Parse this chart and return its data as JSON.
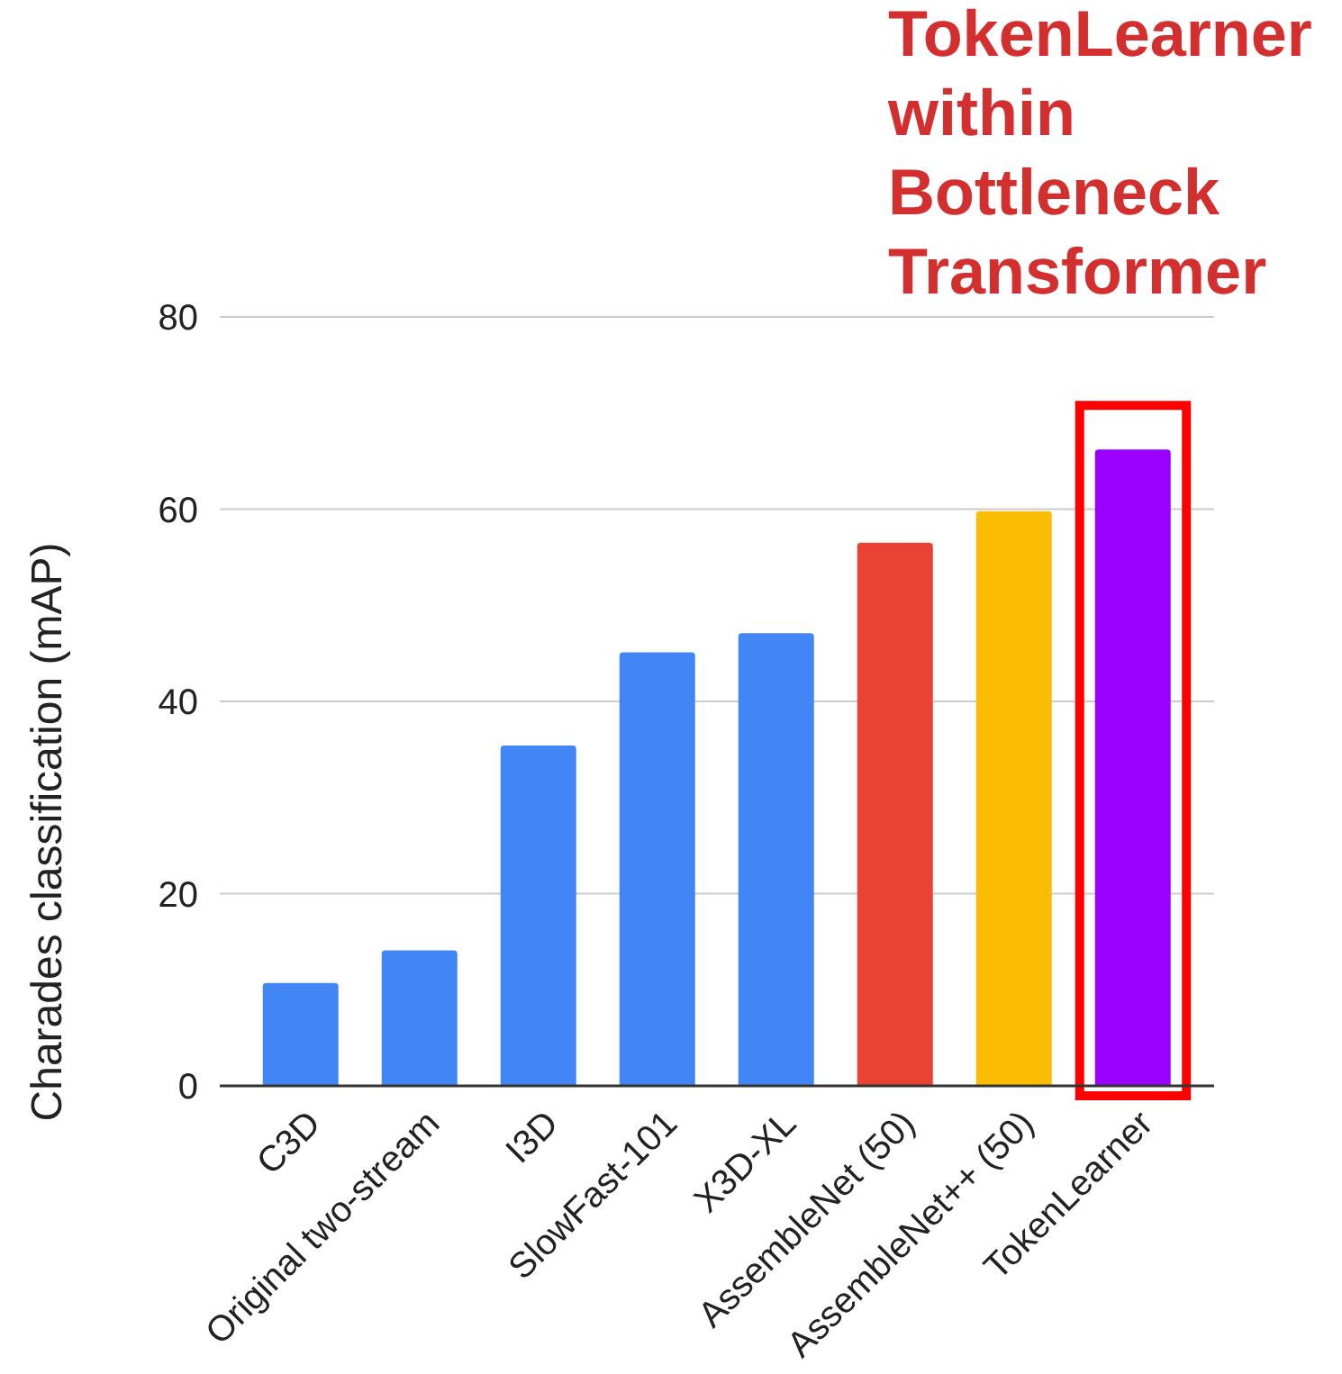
{
  "chart_data": {
    "type": "bar",
    "ylabel": "Charades classification (mAP)",
    "categories": [
      "C3D",
      "Original two-stream",
      "I3D",
      "SlowFast-101",
      "X3D-XL",
      "AssembleNet (50)",
      "AssembleNet++ (50)",
      "TokenLearner"
    ],
    "values": [
      10.7,
      14.1,
      35.4,
      45.1,
      47.1,
      56.5,
      59.8,
      66.2
    ],
    "colors": [
      "#4285f4",
      "#4285f4",
      "#4285f4",
      "#4285f4",
      "#4285f4",
      "#ea4335",
      "#fbbc04",
      "#9900ff"
    ],
    "ylim": [
      0,
      80
    ],
    "yticks": [
      0,
      20,
      40,
      60,
      80
    ],
    "grid": "y",
    "bands": [
      {
        "axis": "x",
        "from": "TokenLearner",
        "to": "TokenLearner",
        "label": "TokenLearner within Bottleneck Transformer",
        "color": "#ff0000"
      }
    ]
  }
}
